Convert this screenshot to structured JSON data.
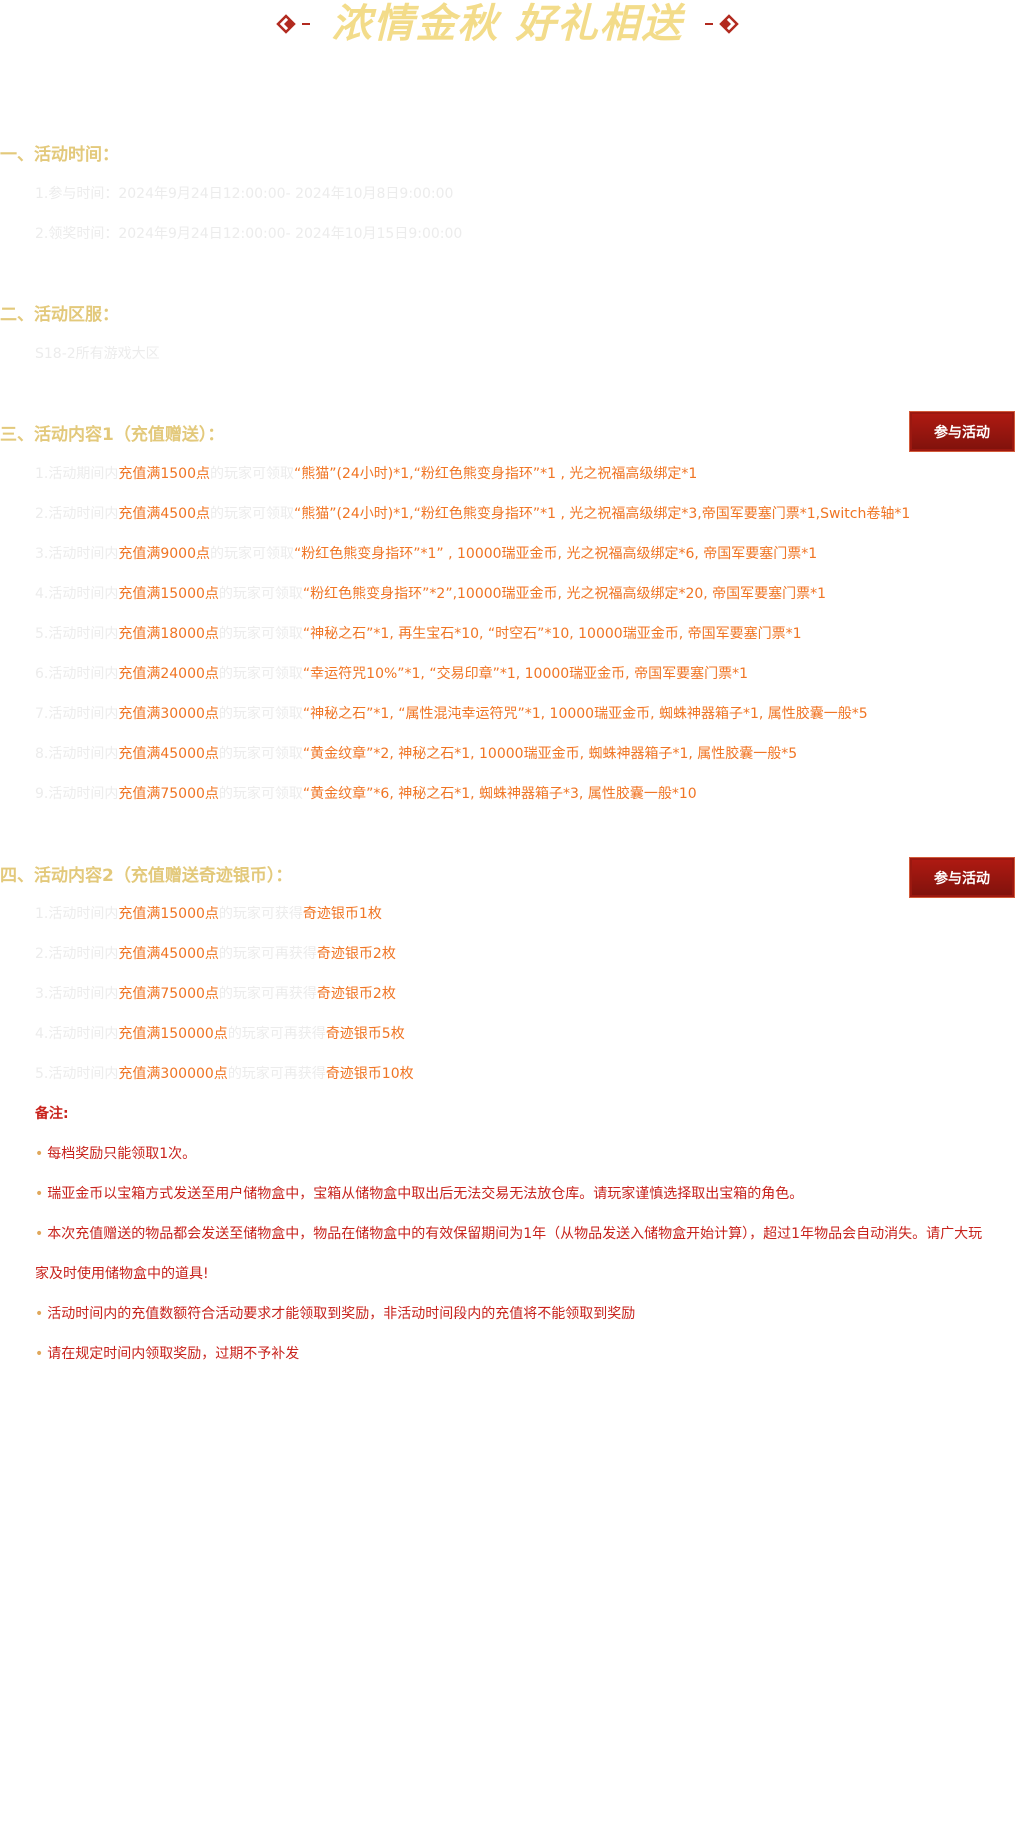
{
  "banner": {
    "title": "浓情金秋 好礼相送"
  },
  "sections": {
    "time": {
      "heading": "一、活动时间：",
      "lines": [
        "1.参与时间：2024年9月24日12:00:00- 2024年10月8日9:00:00",
        "2.领奖时间：2024年9月24日12:00:00- 2024年10月15日9:00:00"
      ]
    },
    "server": {
      "heading": "二、活动区服：",
      "lines": [
        "S18-2所有游戏大区"
      ]
    },
    "content1": {
      "heading": "三、活动内容1（充值赠送）：",
      "join_label": "参与活动",
      "rows": [
        {
          "pre": "1.活动期间内",
          "amount": "充值满1500点",
          "mid": "的玩家可领取",
          "reward": "“熊猫”(24小时)*1,“粉红色熊变身指环”*1 , 光之祝福高级绑定*1"
        },
        {
          "pre": "2.活动时间内",
          "amount": "充值满4500点",
          "mid": "的玩家可领取",
          "reward": "“熊猫”(24小时)*1,“粉红色熊变身指环”*1 , 光之祝福高级绑定*3,帝国军要塞门票*1,Switch卷轴*1"
        },
        {
          "pre": "3.活动时间内",
          "amount": "充值满9000点",
          "mid": "的玩家可领取",
          "reward": "“粉红色熊变身指环”*1” , 10000瑞亚金币, 光之祝福高级绑定*6, 帝国军要塞门票*1"
        },
        {
          "pre": "4.活动时间内",
          "amount": "充值满15000点",
          "mid": "的玩家可领取",
          "reward": "“粉红色熊变身指环”*2”,10000瑞亚金币, 光之祝福高级绑定*20, 帝国军要塞门票*1"
        },
        {
          "pre": "5.活动时间内",
          "amount": "充值满18000点",
          "mid": "的玩家可领取",
          "reward": "“神秘之石”*1, 再生宝石*10, “时空石”*10, 10000瑞亚金币, 帝国军要塞门票*1"
        },
        {
          "pre": "6.活动时间内",
          "amount": "充值满24000点",
          "mid": "的玩家可领取",
          "reward": "“幸运符咒10%”*1, “交易印章”*1, 10000瑞亚金币, 帝国军要塞门票*1"
        },
        {
          "pre": "7.活动时间内",
          "amount": "充值满30000点",
          "mid": "的玩家可领取",
          "reward": "“神秘之石”*1, “属性混沌幸运符咒”*1, 10000瑞亚金币, 蜘蛛神器箱子*1, 属性胶囊一般*5"
        },
        {
          "pre": "8.活动时间内",
          "amount": "充值满45000点",
          "mid": "的玩家可领取",
          "reward": "“黄金纹章”*2, 神秘之石*1, 10000瑞亚金币, 蜘蛛神器箱子*1, 属性胶囊一般*5"
        },
        {
          "pre": "9.活动时间内",
          "amount": "充值满75000点",
          "mid": "的玩家可领取",
          "reward": "“黄金纹章”*6, 神秘之石*1, 蜘蛛神器箱子*3, 属性胶囊一般*10"
        }
      ]
    },
    "content2": {
      "heading": "四、活动内容2（充值赠送奇迹银币）：",
      "join_label": "参与活动",
      "rows": [
        {
          "pre": "1.活动时间内",
          "amount": "充值满15000点",
          "mid": "的玩家可获得",
          "reward": "奇迹银币1枚"
        },
        {
          "pre": "2.活动时间内",
          "amount": "充值满45000点",
          "mid": "的玩家可再获得",
          "reward": "奇迹银币2枚"
        },
        {
          "pre": "3.活动时间内",
          "amount": "充值满75000点",
          "mid": "的玩家可再获得",
          "reward": "奇迹银币2枚"
        },
        {
          "pre": "4.活动时间内",
          "amount": "充值满150000点",
          "mid": "的玩家可再获得",
          "reward": "奇迹银币5枚"
        },
        {
          "pre": "5.活动时间内",
          "amount": "充值满300000点",
          "mid": "的玩家可再获得",
          "reward": "奇迹银币10枚"
        }
      ]
    },
    "notes": {
      "title": "备注:",
      "items": [
        "每档奖励只能领取1次。",
        "瑞亚金币以宝箱方式发送至用户储物盒中，宝箱从储物盒中取出后无法交易无法放仓库。请玩家谨慎选择取出宝箱的角色。",
        "本次充值赠送的物品都会发送至储物盒中，物品在储物盒中的有效保留期间为1年（从物品发送入储物盒开始计算），超过1年物品会自动消失。请广大玩",
        "活动时间内的充值数额符合活动要求才能领取到奖励，非活动时间段内的充值将不能领取到奖励",
        "请在规定时间内领取奖励，过期不予补发"
      ],
      "item3_cont": "家及时使用储物盒中的道具!"
    }
  }
}
